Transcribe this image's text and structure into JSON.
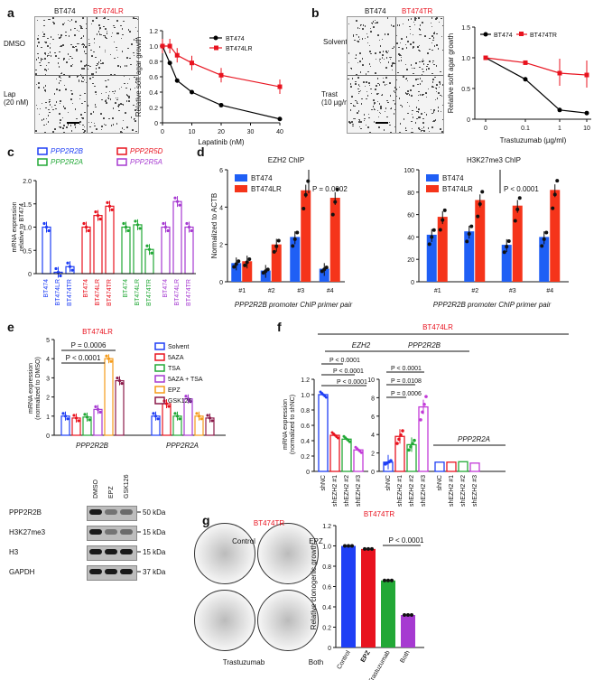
{
  "panel_labels": [
    "a",
    "b",
    "c",
    "d",
    "e",
    "f",
    "g"
  ],
  "a": {
    "col1": "BT474",
    "col2": "BT474LR",
    "row1": "DMSO",
    "row2": "Lap\n(20 nM)",
    "chart": {
      "type": "line",
      "xlabel": "Lapatinib (nM)",
      "ylabel": "Relative soft agar growth",
      "xlim": [
        0,
        40
      ],
      "ylim": [
        0,
        1.2
      ],
      "xticks": [
        "0",
        "10",
        "20",
        "30",
        "40"
      ],
      "yticks": [
        "0",
        "0.2",
        "0.4",
        "0.6",
        "0.8",
        "1.0",
        "1.2"
      ],
      "series": [
        {
          "name": "BT474",
          "color": "#000000",
          "x": [
            0,
            2.5,
            5,
            10,
            20,
            40
          ],
          "y": [
            1.0,
            0.78,
            0.55,
            0.4,
            0.23,
            0.05
          ]
        },
        {
          "name": "BT474LR",
          "color": "#e8131f",
          "x": [
            0,
            2.5,
            5,
            10,
            20,
            40
          ],
          "y": [
            1.0,
            1.0,
            0.88,
            0.78,
            0.62,
            0.47
          ]
        }
      ]
    }
  },
  "b": {
    "col1": "BT474",
    "col2": "BT474TR",
    "row1": "Solvent",
    "row2": "Trast\n(10 µg/ml)",
    "chart": {
      "type": "line",
      "xlabel": "Trastuzumab (µg/ml)",
      "ylabel": "Relative soft agar growth",
      "ylim": [
        0,
        1.5
      ],
      "xticks": [
        "0",
        "0.1",
        "1",
        "10"
      ],
      "yticks": [
        "0",
        "0.5",
        "1.0",
        "1.5"
      ],
      "series": [
        {
          "name": "BT474",
          "color": "#000000",
          "y": [
            1.0,
            0.65,
            0.15,
            0.1
          ]
        },
        {
          "name": "BT474TR",
          "color": "#e8131f",
          "y": [
            1.0,
            0.92,
            0.75,
            0.72
          ]
        }
      ]
    }
  },
  "c": {
    "chart": {
      "type": "bar",
      "ylabel": "mRNA expression\nrelative to BT474",
      "ylim": [
        0,
        2.0
      ],
      "yticks": [
        "0",
        "0.5",
        "1.0",
        "1.5",
        "2.0"
      ],
      "legend": [
        {
          "name": "PPP2R2B",
          "color": "#1f3ff5"
        },
        {
          "name": "PPP2R5D",
          "color": "#e8131f"
        },
        {
          "name": "PPP2R2A",
          "color": "#22a836"
        },
        {
          "name": "PPP2R5A",
          "color": "#a63ad1"
        }
      ],
      "groups": [
        {
          "color": "#1f3ff5",
          "values": [
            1.0,
            0.03,
            0.15
          ]
        },
        {
          "color": "#e8131f",
          "values": [
            1.0,
            1.25,
            1.45
          ]
        },
        {
          "color": "#22a836",
          "values": [
            1.0,
            1.05,
            0.52
          ]
        },
        {
          "color": "#a63ad1",
          "values": [
            1.0,
            1.55,
            1.0
          ]
        }
      ],
      "categories": [
        "BT474",
        "BT474LR",
        "BT474TR"
      ]
    }
  },
  "d": {
    "left": {
      "title": "EZH2 ChIP",
      "ylabel": "Normalized to ACTB",
      "ylim": [
        0,
        6
      ],
      "yticks": [
        "0",
        "2",
        "4",
        "6"
      ],
      "pvalue": "P = 0.0002",
      "legend": [
        "BT474",
        "BT474LR"
      ],
      "categories": [
        "#1",
        "#2",
        "#3",
        "#4"
      ],
      "series": [
        {
          "name": "BT474",
          "color": "#1f5ff5",
          "values": [
            1.0,
            0.6,
            2.4,
            0.7
          ]
        },
        {
          "name": "BT474LR",
          "color": "#f5341a",
          "values": [
            1.1,
            2.0,
            4.9,
            4.5
          ]
        }
      ]
    },
    "right": {
      "title": "H3K27me3 ChIP",
      "ylim": [
        0,
        100
      ],
      "yticks": [
        "0",
        "20",
        "40",
        "60",
        "80",
        "100"
      ],
      "pvalue": "P < 0.0001",
      "legend": [
        "BT474",
        "BT474LR"
      ],
      "categories": [
        "#1",
        "#2",
        "#3",
        "#4"
      ],
      "series": [
        {
          "name": "BT474",
          "color": "#1f5ff5",
          "values": [
            42,
            45,
            33,
            40
          ]
        },
        {
          "name": "BT474LR",
          "color": "#f5341a",
          "values": [
            58,
            73,
            68,
            82
          ]
        }
      ]
    },
    "xlabel": "PPP2R2B promoter ChIP primer pair"
  },
  "e": {
    "title": "BT474LR",
    "ylabel": "mRNA expression\n(normalized to DMSO)",
    "ylim": [
      0,
      5
    ],
    "yticks": [
      "0",
      "1",
      "2",
      "3",
      "4",
      "5"
    ],
    "p1": "P = 0.0006",
    "p2": "P < 0.0001",
    "legend": [
      {
        "name": "Solvent",
        "color": "#1f3ff5"
      },
      {
        "name": "5AZA",
        "color": "#e8131f"
      },
      {
        "name": "TSA",
        "color": "#22a836"
      },
      {
        "name": "5AZA  + TSA",
        "color": "#a63ad1"
      },
      {
        "name": "EPZ",
        "color": "#f59b1a"
      },
      {
        "name": "GSK126",
        "color": "#8b1a4a"
      }
    ],
    "groups": [
      {
        "name": "PPP2R2B",
        "values": [
          1.0,
          0.9,
          0.95,
          1.35,
          4.0,
          2.85
        ]
      },
      {
        "name": "PPP2R2A",
        "values": [
          1.0,
          1.65,
          1.0,
          1.9,
          1.0,
          0.9
        ]
      }
    ],
    "blot": {
      "lanes": [
        "DMSO",
        "EPZ",
        "GSK126"
      ],
      "rows": [
        "PPP2R2B",
        "H3K27me3",
        "H3",
        "GAPDH"
      ],
      "mw": [
        "50 kDa",
        "15 kDa",
        "15 kDa",
        "37 kDa"
      ]
    }
  },
  "f": {
    "title": "BT474LR",
    "gene1": "EZH2",
    "gene2": "PPP2R2B",
    "gene3": "PPP2R2A",
    "ylabel": "mRNA expression\n(normalized to shNC)",
    "ylim": [
      0,
      1.2
    ],
    "ylim2": [
      0,
      10
    ],
    "yticks": [
      "0",
      "0.2",
      "0.4",
      "0.6",
      "0.8",
      "1.0",
      "1.2"
    ],
    "yticks2": [
      "0",
      "2",
      "4",
      "6",
      "8",
      "10"
    ],
    "pvals1": [
      "P < 0.0001",
      "P < 0.0001",
      "P < 0.0001"
    ],
    "pvals2": [
      "P < 0.0001",
      "P = 0.0108",
      "P = 0.0006"
    ],
    "categories": [
      "shNC",
      "shEZH2 #1",
      "shEZH2 #2",
      "shEZH2 #3"
    ],
    "colors": [
      "#1f3ff5",
      "#e8131f",
      "#22a836",
      "#c23ad8"
    ],
    "ezh2": [
      1.0,
      0.47,
      0.42,
      0.28
    ],
    "pp2r2b": [
      1.0,
      3.8,
      2.9,
      7.0
    ],
    "pp2r2a": [
      1.0,
      1.0,
      1.05,
      0.9
    ]
  },
  "g": {
    "title": "BT474TR",
    "plates": [
      "Control",
      "EPZ",
      "Trastuzumab",
      "Both"
    ],
    "chart": {
      "type": "bar",
      "ylabel": "Relative clonogenic growth",
      "ylim": [
        0,
        1.2
      ],
      "yticks": [
        "0",
        "0.2",
        "0.4",
        "0.6",
        "0.8",
        "1.0",
        "1.2"
      ],
      "categories": [
        "Control",
        "EPZ",
        "Trastuzumab",
        "Both"
      ],
      "values": [
        1.0,
        0.97,
        0.66,
        0.32
      ],
      "colors": [
        "#1f3ff5",
        "#e8131f",
        "#22a836",
        "#a63ad1"
      ],
      "pvalue": "P < 0.0001"
    }
  }
}
